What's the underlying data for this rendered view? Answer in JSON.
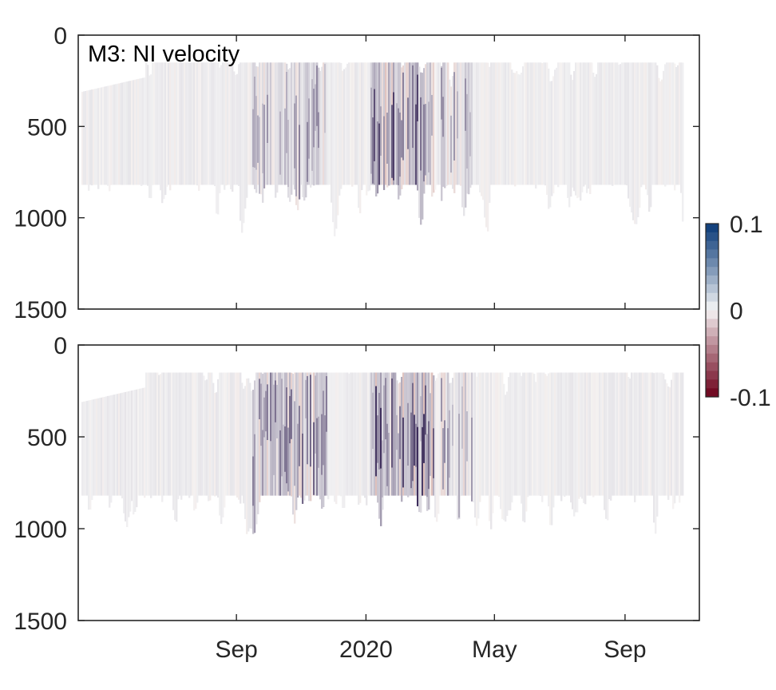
{
  "chart_data": [
    {
      "type": "heatmap",
      "title": "M3: NI velocity",
      "xlabel": "",
      "ylabel": "",
      "ylim": [
        0,
        1500
      ],
      "y_reversed": true,
      "yticks": [
        0,
        500,
        1000,
        1500
      ],
      "ytick_labels": [
        "0",
        "500",
        "1000",
        "1500"
      ],
      "xlim": [
        "2019-04-05",
        "2020-11-10"
      ],
      "xticks": [
        "2019-09-01",
        "2020-01-01",
        "2020-05-01",
        "2020-09-01"
      ],
      "xtick_labels": [],
      "data_depth_range": [
        150,
        820
      ],
      "intense_periods": [
        {
          "start": "2019-09-15",
          "end": "2019-11-25",
          "strength": 0.45
        },
        {
          "start": "2020-01-05",
          "end": "2020-03-05",
          "strength": 0.7
        },
        {
          "start": "2020-03-10",
          "end": "2020-04-10",
          "strength": 0.4
        }
      ]
    },
    {
      "type": "heatmap",
      "title": "",
      "xlabel": "",
      "ylabel": "",
      "ylim": [
        0,
        1500
      ],
      "y_reversed": true,
      "yticks": [
        0,
        500,
        1000,
        1500
      ],
      "ytick_labels": [
        "0",
        "500",
        "1000",
        "1500"
      ],
      "xlim": [
        "2019-04-05",
        "2020-11-10"
      ],
      "xticks": [
        "2019-09-01",
        "2020-01-01",
        "2020-05-01",
        "2020-09-01"
      ],
      "xtick_labels": [
        "Sep",
        "2020",
        "May",
        "Sep"
      ],
      "data_depth_range": [
        150,
        820
      ],
      "intense_periods": [
        {
          "start": "2019-09-15",
          "end": "2019-11-25",
          "strength": 0.55
        },
        {
          "start": "2020-01-05",
          "end": "2020-03-05",
          "strength": 0.75
        },
        {
          "start": "2020-03-10",
          "end": "2020-04-10",
          "strength": 0.45
        }
      ]
    }
  ],
  "colorbar": {
    "range": [
      -0.1,
      0.1
    ],
    "levels": 20,
    "tick_labels": [
      "0.1",
      "0",
      "-0.1"
    ],
    "top_color": "#0b3b78",
    "mid_color": "#f7f7f7",
    "bottom_color": "#6b0019",
    "trace_color": "#3c2c5a"
  }
}
